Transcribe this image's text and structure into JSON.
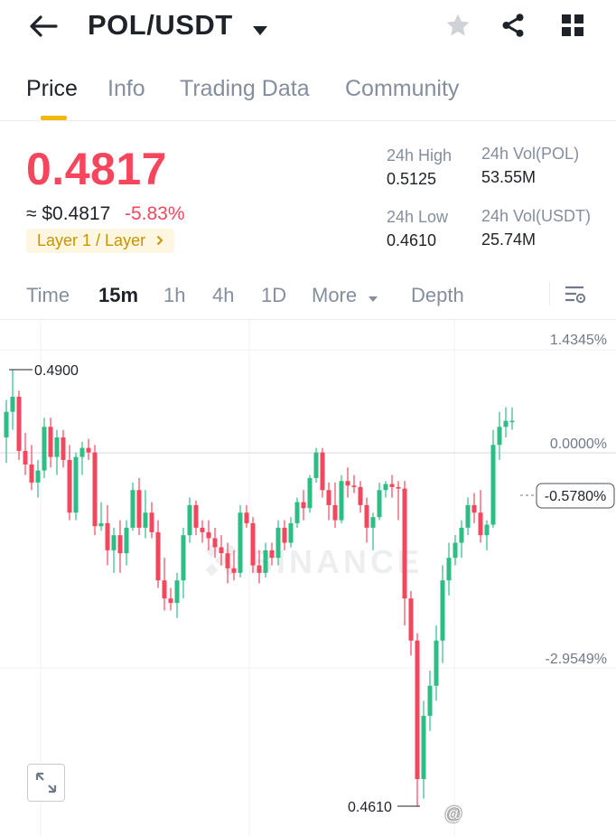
{
  "header": {
    "pair": "POL/USDT"
  },
  "tabs": [
    {
      "label": "Price"
    },
    {
      "label": "Info"
    },
    {
      "label": "Trading Data"
    },
    {
      "label": "Community"
    }
  ],
  "price": {
    "last": "0.4817",
    "usd": "≈ $0.4817",
    "change": "-5.83%",
    "tag": "Layer 1 / Layer"
  },
  "stats": {
    "high_label": "24h High",
    "high": "0.5125",
    "low_label": "24h Low",
    "low": "0.4610",
    "vol_base_label": "24h Vol(POL)",
    "vol_base": "53.55M",
    "vol_quote_label": "24h Vol(USDT)",
    "vol_quote": "25.74M"
  },
  "intervals": [
    {
      "label": "Time"
    },
    {
      "label": "15m"
    },
    {
      "label": "1h"
    },
    {
      "label": "4h"
    },
    {
      "label": "1D"
    },
    {
      "label": "More"
    },
    {
      "label": "Depth"
    }
  ],
  "chart_data": {
    "type": "candlestick",
    "percent_ticks": [
      "1.4345%",
      "0.0000%",
      "-2.9549%"
    ],
    "last_change_label": "-0.5780%",
    "high_marker": "0.4900",
    "low_marker": "0.4610",
    "watermark": "BINANCE",
    "colors": {
      "up": "#2ebd85",
      "down": "#f6465d"
    },
    "candles": [
      [
        0.4855,
        0.488,
        0.4838,
        0.4872
      ],
      [
        0.4872,
        0.49,
        0.486,
        0.4882
      ],
      [
        0.4882,
        0.4886,
        0.484,
        0.4846
      ],
      [
        0.4846,
        0.4858,
        0.483,
        0.4837
      ],
      [
        0.4837,
        0.485,
        0.482,
        0.4825
      ],
      [
        0.4825,
        0.484,
        0.4815,
        0.4833
      ],
      [
        0.4833,
        0.4868,
        0.4828,
        0.4862
      ],
      [
        0.4862,
        0.4868,
        0.4835,
        0.4842
      ],
      [
        0.4842,
        0.486,
        0.483,
        0.4855
      ],
      [
        0.4855,
        0.486,
        0.4835,
        0.484
      ],
      [
        0.484,
        0.485,
        0.48,
        0.4805
      ],
      [
        0.4805,
        0.4845,
        0.48,
        0.4842
      ],
      [
        0.4842,
        0.4852,
        0.483,
        0.4848
      ],
      [
        0.4848,
        0.4854,
        0.484,
        0.4845
      ],
      [
        0.4845,
        0.485,
        0.479,
        0.4796
      ],
      [
        0.4796,
        0.4812,
        0.4793,
        0.4798
      ],
      [
        0.4798,
        0.481,
        0.477,
        0.478
      ],
      [
        0.478,
        0.4795,
        0.4765,
        0.479
      ],
      [
        0.479,
        0.48,
        0.4765,
        0.4778
      ],
      [
        0.4778,
        0.48,
        0.477,
        0.4795
      ],
      [
        0.4795,
        0.4825,
        0.4793,
        0.482
      ],
      [
        0.482,
        0.4828,
        0.479,
        0.4795
      ],
      [
        0.4795,
        0.482,
        0.4788,
        0.4805
      ],
      [
        0.4805,
        0.4812,
        0.4788,
        0.4792
      ],
      [
        0.4792,
        0.48,
        0.4755,
        0.476
      ],
      [
        0.476,
        0.4775,
        0.474,
        0.4748
      ],
      [
        0.4748,
        0.4755,
        0.474,
        0.4745
      ],
      [
        0.4745,
        0.4765,
        0.4735,
        0.476
      ],
      [
        0.476,
        0.4795,
        0.4748,
        0.479
      ],
      [
        0.479,
        0.4815,
        0.4785,
        0.481
      ],
      [
        0.481,
        0.4813,
        0.479,
        0.4795
      ],
      [
        0.4795,
        0.48,
        0.4785,
        0.4792
      ],
      [
        0.4792,
        0.48,
        0.478,
        0.4788
      ],
      [
        0.4788,
        0.4795,
        0.4775,
        0.4782
      ],
      [
        0.4782,
        0.479,
        0.477,
        0.4778
      ],
      [
        0.4778,
        0.4785,
        0.4758,
        0.4768
      ],
      [
        0.4768,
        0.478,
        0.476,
        0.4765
      ],
      [
        0.4765,
        0.481,
        0.4762,
        0.4805
      ],
      [
        0.4805,
        0.481,
        0.4795,
        0.4798
      ],
      [
        0.4798,
        0.4802,
        0.4765,
        0.477
      ],
      [
        0.477,
        0.478,
        0.4758,
        0.4765
      ],
      [
        0.4765,
        0.4785,
        0.4762,
        0.478
      ],
      [
        0.478,
        0.4785,
        0.477,
        0.4775
      ],
      [
        0.4775,
        0.48,
        0.477,
        0.4795
      ],
      [
        0.4795,
        0.48,
        0.478,
        0.4785
      ],
      [
        0.4785,
        0.4802,
        0.4782,
        0.4798
      ],
      [
        0.4798,
        0.4815,
        0.4795,
        0.4812
      ],
      [
        0.4812,
        0.482,
        0.48,
        0.4808
      ],
      [
        0.4808,
        0.483,
        0.4805,
        0.4828
      ],
      [
        0.4828,
        0.4848,
        0.4825,
        0.4845
      ],
      [
        0.4845,
        0.4848,
        0.4815,
        0.482
      ],
      [
        0.482,
        0.4825,
        0.48,
        0.481
      ],
      [
        0.481,
        0.4825,
        0.4795,
        0.48
      ],
      [
        0.48,
        0.483,
        0.4798,
        0.4826
      ],
      [
        0.4826,
        0.4835,
        0.4815,
        0.4823
      ],
      [
        0.4823,
        0.483,
        0.4818,
        0.4822
      ],
      [
        0.4822,
        0.4826,
        0.4805,
        0.481
      ],
      [
        0.481,
        0.4815,
        0.4785,
        0.4795
      ],
      [
        0.4795,
        0.4805,
        0.478,
        0.4802
      ],
      [
        0.4802,
        0.4825,
        0.48,
        0.482
      ],
      [
        0.482,
        0.4826,
        0.4815,
        0.4824
      ],
      [
        0.4824,
        0.483,
        0.4815,
        0.4822
      ],
      [
        0.4822,
        0.4826,
        0.48,
        0.4821
      ],
      [
        0.4821,
        0.4826,
        0.473,
        0.4748
      ],
      [
        0.4748,
        0.4753,
        0.471,
        0.472
      ],
      [
        0.472,
        0.4725,
        0.461,
        0.4628
      ],
      [
        0.4628,
        0.468,
        0.4615,
        0.467
      ],
      [
        0.467,
        0.47,
        0.466,
        0.469
      ],
      [
        0.469,
        0.473,
        0.468,
        0.472
      ],
      [
        0.472,
        0.477,
        0.4705,
        0.476
      ],
      [
        0.476,
        0.4785,
        0.475,
        0.4775
      ],
      [
        0.4775,
        0.479,
        0.477,
        0.4785
      ],
      [
        0.4785,
        0.48,
        0.4775,
        0.4795
      ],
      [
        0.4795,
        0.4815,
        0.479,
        0.481
      ],
      [
        0.481,
        0.4818,
        0.4798,
        0.4805
      ],
      [
        0.4805,
        0.482,
        0.4785,
        0.479
      ],
      [
        0.479,
        0.48,
        0.478,
        0.4797
      ],
      [
        0.4797,
        0.486,
        0.4795,
        0.485
      ],
      [
        0.485,
        0.4872,
        0.484,
        0.4862
      ],
      [
        0.4862,
        0.4875,
        0.4855,
        0.4866
      ],
      [
        0.4866,
        0.4875,
        0.486,
        0.4866
      ]
    ]
  }
}
